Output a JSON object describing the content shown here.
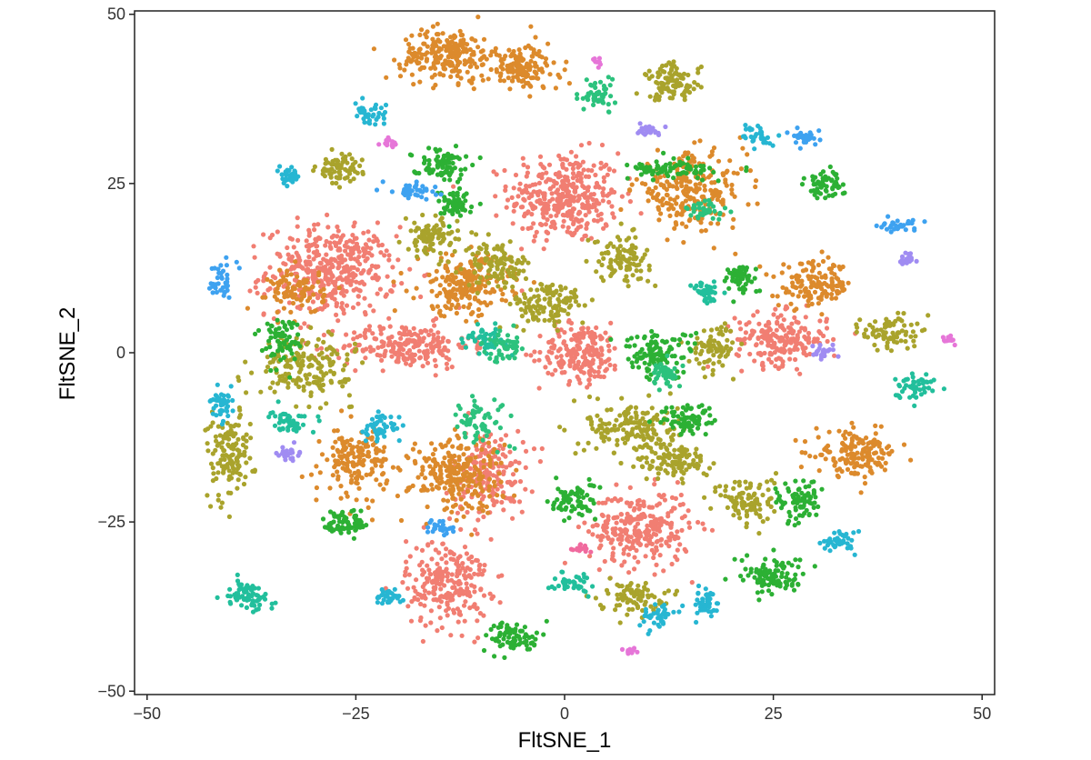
{
  "chart_data": {
    "type": "scatter",
    "xlabel": "FltSNE_1",
    "ylabel": "FltSNE_2",
    "xlim": [
      -51.5,
      51.5
    ],
    "ylim": [
      -50.5,
      50.5
    ],
    "x_ticks": [
      -50,
      -25,
      0,
      25,
      50
    ],
    "y_ticks": [
      -50,
      -25,
      0,
      25,
      50
    ],
    "x_tick_labels": [
      "−50",
      "−25",
      "0",
      "25",
      "50"
    ],
    "y_tick_labels": [
      "−50",
      "−25",
      "0",
      "25",
      "50"
    ],
    "grid": false,
    "legend": "none",
    "point_size": "tiny",
    "colors": {
      "salmon": "#F17E72",
      "orange": "#DC8A2C",
      "olive": "#A9A32C",
      "green": "#2CB034",
      "teal": "#22BF9C",
      "cyan": "#27B6D2",
      "blue": "#3EA2F0",
      "purple": "#A08CF2",
      "magenta": "#E676D8",
      "pink": "#F06A9E",
      "mint": "#2CC27D"
    },
    "clusters": [
      {
        "color": "salmon",
        "center": [
          0,
          23
        ],
        "sd": [
          6,
          6
        ],
        "n": 360
      },
      {
        "color": "salmon",
        "center": [
          -28,
          12
        ],
        "sd": [
          7,
          6
        ],
        "n": 420
      },
      {
        "color": "salmon",
        "center": [
          -19,
          1
        ],
        "sd": [
          7,
          3
        ],
        "n": 220
      },
      {
        "color": "salmon",
        "center": [
          2,
          0
        ],
        "sd": [
          4.5,
          4
        ],
        "n": 200
      },
      {
        "color": "salmon",
        "center": [
          26,
          2
        ],
        "sd": [
          5,
          3.5
        ],
        "n": 200
      },
      {
        "color": "salmon",
        "center": [
          9,
          -26
        ],
        "sd": [
          5.5,
          5
        ],
        "n": 280
      },
      {
        "color": "salmon",
        "center": [
          -14,
          -34
        ],
        "sd": [
          4.5,
          6
        ],
        "n": 240
      },
      {
        "color": "salmon",
        "center": [
          -9,
          -18
        ],
        "sd": [
          4,
          6
        ],
        "n": 180
      },
      {
        "color": "orange",
        "center": [
          -14,
          44
        ],
        "sd": [
          5,
          3.5
        ],
        "n": 220
      },
      {
        "color": "orange",
        "center": [
          -5,
          42
        ],
        "sd": [
          4,
          3
        ],
        "n": 140
      },
      {
        "color": "orange",
        "center": [
          -12,
          10
        ],
        "sd": [
          5,
          4
        ],
        "n": 220
      },
      {
        "color": "orange",
        "center": [
          15,
          24
        ],
        "sd": [
          6,
          5
        ],
        "n": 240
      },
      {
        "color": "orange",
        "center": [
          30,
          10
        ],
        "sd": [
          4,
          3
        ],
        "n": 140
      },
      {
        "color": "orange",
        "center": [
          35,
          -15
        ],
        "sd": [
          4.5,
          3
        ],
        "n": 160
      },
      {
        "color": "orange",
        "center": [
          -25,
          -16
        ],
        "sd": [
          3.5,
          4.5
        ],
        "n": 160
      },
      {
        "color": "orange",
        "center": [
          -13,
          -18
        ],
        "sd": [
          5,
          5
        ],
        "n": 240
      },
      {
        "color": "orange",
        "center": [
          -32,
          9
        ],
        "sd": [
          3,
          3
        ],
        "n": 90
      },
      {
        "color": "olive",
        "center": [
          13,
          40
        ],
        "sd": [
          3,
          2.5
        ],
        "n": 100
      },
      {
        "color": "olive",
        "center": [
          -27,
          27
        ],
        "sd": [
          2.5,
          2
        ],
        "n": 70
      },
      {
        "color": "olive",
        "center": [
          -16,
          17
        ],
        "sd": [
          3,
          2.5
        ],
        "n": 90
      },
      {
        "color": "olive",
        "center": [
          -8,
          13
        ],
        "sd": [
          3.5,
          3
        ],
        "n": 110
      },
      {
        "color": "olive",
        "center": [
          -2,
          7
        ],
        "sd": [
          4,
          3
        ],
        "n": 120
      },
      {
        "color": "olive",
        "center": [
          7,
          14
        ],
        "sd": [
          3,
          3
        ],
        "n": 100
      },
      {
        "color": "olive",
        "center": [
          18,
          1
        ],
        "sd": [
          2.5,
          3
        ],
        "n": 80
      },
      {
        "color": "olive",
        "center": [
          -31,
          -2
        ],
        "sd": [
          5,
          4
        ],
        "n": 180
      },
      {
        "color": "olive",
        "center": [
          -40,
          -15
        ],
        "sd": [
          2.5,
          6
        ],
        "n": 140
      },
      {
        "color": "olive",
        "center": [
          8,
          -11
        ],
        "sd": [
          5,
          3.5
        ],
        "n": 160
      },
      {
        "color": "olive",
        "center": [
          22,
          -22
        ],
        "sd": [
          3,
          3.5
        ],
        "n": 100
      },
      {
        "color": "olive",
        "center": [
          13,
          -16
        ],
        "sd": [
          4,
          2.5
        ],
        "n": 110
      },
      {
        "color": "olive",
        "center": [
          39,
          3
        ],
        "sd": [
          3,
          2.5
        ],
        "n": 80
      },
      {
        "color": "olive",
        "center": [
          8,
          -36
        ],
        "sd": [
          3.5,
          2
        ],
        "n": 80
      },
      {
        "color": "green",
        "center": [
          -15,
          28
        ],
        "sd": [
          3,
          2
        ],
        "n": 80
      },
      {
        "color": "green",
        "center": [
          -13,
          22
        ],
        "sd": [
          2,
          2
        ],
        "n": 60
      },
      {
        "color": "green",
        "center": [
          31,
          25
        ],
        "sd": [
          2,
          2
        ],
        "n": 60
      },
      {
        "color": "green",
        "center": [
          21,
          11
        ],
        "sd": [
          2,
          2
        ],
        "n": 60
      },
      {
        "color": "green",
        "center": [
          -34,
          2
        ],
        "sd": [
          2,
          3
        ],
        "n": 70
      },
      {
        "color": "green",
        "center": [
          11,
          0
        ],
        "sd": [
          4,
          3
        ],
        "n": 110
      },
      {
        "color": "green",
        "center": [
          15,
          -10
        ],
        "sd": [
          3,
          2
        ],
        "n": 80
      },
      {
        "color": "green",
        "center": [
          28,
          -22
        ],
        "sd": [
          2.5,
          3
        ],
        "n": 80
      },
      {
        "color": "green",
        "center": [
          1,
          -22
        ],
        "sd": [
          2.5,
          2.5
        ],
        "n": 70
      },
      {
        "color": "green",
        "center": [
          -26,
          -25
        ],
        "sd": [
          2.5,
          2
        ],
        "n": 70
      },
      {
        "color": "green",
        "center": [
          -6,
          -42
        ],
        "sd": [
          3,
          2
        ],
        "n": 80
      },
      {
        "color": "green",
        "center": [
          25,
          -33
        ],
        "sd": [
          3.5,
          2.5
        ],
        "n": 100
      },
      {
        "color": "green",
        "center": [
          13,
          27
        ],
        "sd": [
          5,
          1.2
        ],
        "n": 80
      },
      {
        "color": "teal",
        "center": [
          -38,
          -36
        ],
        "sd": [
          2.5,
          2
        ],
        "n": 70
      },
      {
        "color": "teal",
        "center": [
          -33,
          -10
        ],
        "sd": [
          2,
          1.5
        ],
        "n": 50
      },
      {
        "color": "teal",
        "center": [
          42,
          -5
        ],
        "sd": [
          2,
          1.8
        ],
        "n": 50
      },
      {
        "color": "teal",
        "center": [
          17,
          9
        ],
        "sd": [
          1.5,
          1.5
        ],
        "n": 40
      },
      {
        "color": "teal",
        "center": [
          1,
          -34
        ],
        "sd": [
          2,
          1.5
        ],
        "n": 40
      },
      {
        "color": "teal",
        "center": [
          -10,
          2
        ],
        "sd": [
          2.5,
          1.5
        ],
        "n": 50
      },
      {
        "color": "cyan",
        "center": [
          -23,
          35
        ],
        "sd": [
          1.8,
          1.5
        ],
        "n": 40
      },
      {
        "color": "cyan",
        "center": [
          -33,
          26
        ],
        "sd": [
          1.3,
          1.2
        ],
        "n": 35
      },
      {
        "color": "cyan",
        "center": [
          -41,
          -8
        ],
        "sd": [
          1.2,
          2
        ],
        "n": 40
      },
      {
        "color": "cyan",
        "center": [
          -22,
          -11
        ],
        "sd": [
          2,
          2
        ],
        "n": 50
      },
      {
        "color": "cyan",
        "center": [
          -21,
          -36
        ],
        "sd": [
          1.5,
          1.3
        ],
        "n": 35
      },
      {
        "color": "cyan",
        "center": [
          11,
          -39
        ],
        "sd": [
          2,
          1.5
        ],
        "n": 40
      },
      {
        "color": "cyan",
        "center": [
          17,
          -37
        ],
        "sd": [
          1.2,
          2
        ],
        "n": 40
      },
      {
        "color": "cyan",
        "center": [
          33,
          -28
        ],
        "sd": [
          2,
          1.5
        ],
        "n": 40
      },
      {
        "color": "cyan",
        "center": [
          23,
          32
        ],
        "sd": [
          1.5,
          1.5
        ],
        "n": 35
      },
      {
        "color": "blue",
        "center": [
          -41,
          11
        ],
        "sd": [
          1.2,
          2.5
        ],
        "n": 40
      },
      {
        "color": "blue",
        "center": [
          40,
          19
        ],
        "sd": [
          2,
          1.2
        ],
        "n": 35
      },
      {
        "color": "blue",
        "center": [
          -18,
          24
        ],
        "sd": [
          2.5,
          1.2
        ],
        "n": 40
      },
      {
        "color": "blue",
        "center": [
          29,
          32
        ],
        "sd": [
          1.5,
          1
        ],
        "n": 30
      },
      {
        "color": "blue",
        "center": [
          -15,
          -26
        ],
        "sd": [
          1.5,
          1
        ],
        "n": 25
      },
      {
        "color": "purple",
        "center": [
          -33,
          -15
        ],
        "sd": [
          1.2,
          1
        ],
        "n": 25
      },
      {
        "color": "purple",
        "center": [
          10,
          33
        ],
        "sd": [
          1.5,
          0.8
        ],
        "n": 25
      },
      {
        "color": "purple",
        "center": [
          31,
          0
        ],
        "sd": [
          1.5,
          0.8
        ],
        "n": 25
      },
      {
        "color": "purple",
        "center": [
          41,
          14
        ],
        "sd": [
          1,
          1
        ],
        "n": 20
      },
      {
        "color": "magenta",
        "center": [
          -21,
          31
        ],
        "sd": [
          0.8,
          0.8
        ],
        "n": 15
      },
      {
        "color": "magenta",
        "center": [
          8,
          -44
        ],
        "sd": [
          0.8,
          0.5
        ],
        "n": 12
      },
      {
        "color": "magenta",
        "center": [
          46,
          2
        ],
        "sd": [
          0.7,
          0.5
        ],
        "n": 12
      },
      {
        "color": "magenta",
        "center": [
          4,
          43
        ],
        "sd": [
          0.5,
          0.8
        ],
        "n": 10
      },
      {
        "color": "pink",
        "center": [
          2,
          -29
        ],
        "sd": [
          1,
          0.8
        ],
        "n": 15
      },
      {
        "color": "mint",
        "center": [
          4,
          38
        ],
        "sd": [
          2,
          2
        ],
        "n": 50
      },
      {
        "color": "mint",
        "center": [
          -7,
          1
        ],
        "sd": [
          2,
          2
        ],
        "n": 50
      },
      {
        "color": "mint",
        "center": [
          12,
          -3
        ],
        "sd": [
          2,
          2
        ],
        "n": 50
      },
      {
        "color": "mint",
        "center": [
          -10,
          -10
        ],
        "sd": [
          3,
          3
        ],
        "n": 60
      },
      {
        "color": "mint",
        "center": [
          17,
          21
        ],
        "sd": [
          2,
          1.5
        ],
        "n": 40
      }
    ]
  }
}
